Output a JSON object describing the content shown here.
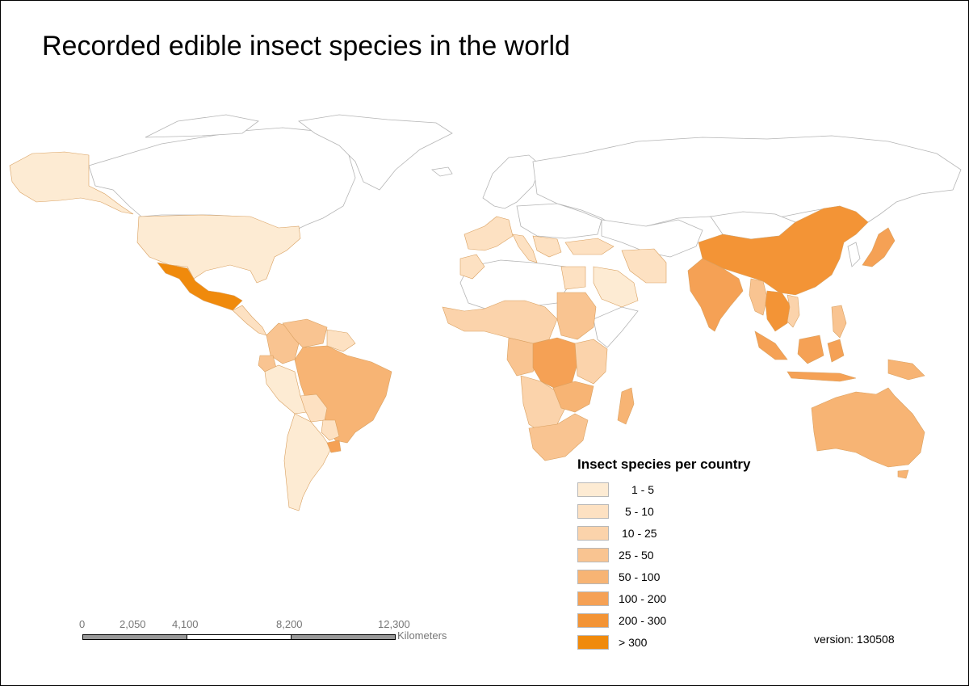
{
  "title": "Recorded edible insect species in the world",
  "legend": {
    "title": "Insect species per country",
    "classes": [
      {
        "label": "1 -  5",
        "color": "#fdebd3"
      },
      {
        "label": "5 - 10",
        "color": "#fde1c2"
      },
      {
        "label": "10 - 25",
        "color": "#fbd3ab"
      },
      {
        "label": "25 - 50",
        "color": "#f9c491"
      },
      {
        "label": "50 - 100",
        "color": "#f7b474"
      },
      {
        "label": "100 - 200",
        "color": "#f5a155"
      },
      {
        "label": "200 - 300",
        "color": "#f39436"
      },
      {
        "label": "> 300",
        "color": "#f08a0c"
      }
    ]
  },
  "scalebar": {
    "ticks": [
      "0",
      "2,050",
      "4,100",
      "8,200",
      "12,300"
    ],
    "unit": "Kilometers"
  },
  "version": "version: 130508",
  "regions": [
    {
      "name": "Alaska",
      "class": 0
    },
    {
      "name": "United States",
      "class": 0
    },
    {
      "name": "Mexico",
      "class": 7
    },
    {
      "name": "Central America",
      "class": 1
    },
    {
      "name": "Colombia",
      "class": 3
    },
    {
      "name": "Venezuela",
      "class": 3
    },
    {
      "name": "Guianas",
      "class": 1
    },
    {
      "name": "Ecuador",
      "class": 3
    },
    {
      "name": "Peru",
      "class": 0
    },
    {
      "name": "Brazil",
      "class": 4
    },
    {
      "name": "Bolivia",
      "class": 1
    },
    {
      "name": "Paraguay",
      "class": 1
    },
    {
      "name": "Argentina / Chile",
      "class": 0
    },
    {
      "name": "Uruguay",
      "class": 5
    },
    {
      "name": "Western Europe",
      "class": 1
    },
    {
      "name": "Italy",
      "class": 1
    },
    {
      "name": "Balkans",
      "class": 1
    },
    {
      "name": "Turkey",
      "class": 1
    },
    {
      "name": "Iran",
      "class": 1
    },
    {
      "name": "Saudi Arabia",
      "class": 0
    },
    {
      "name": "Morocco",
      "class": 1
    },
    {
      "name": "Egypt",
      "class": 1
    },
    {
      "name": "West Africa",
      "class": 2
    },
    {
      "name": "Sudan",
      "class": 3
    },
    {
      "name": "Central Africa",
      "class": 3
    },
    {
      "name": "DR Congo",
      "class": 5
    },
    {
      "name": "East Africa",
      "class": 2
    },
    {
      "name": "Southern Africa",
      "class": 2
    },
    {
      "name": "Zambia",
      "class": 4
    },
    {
      "name": "South Africa",
      "class": 3
    },
    {
      "name": "Madagascar",
      "class": 4
    },
    {
      "name": "China",
      "class": 6
    },
    {
      "name": "Japan",
      "class": 5
    },
    {
      "name": "India",
      "class": 5
    },
    {
      "name": "Myanmar",
      "class": 3
    },
    {
      "name": "Thailand / Laos",
      "class": 6
    },
    {
      "name": "Vietnam",
      "class": 2
    },
    {
      "name": "Philippines",
      "class": 3
    },
    {
      "name": "Indonesia",
      "class": 5
    },
    {
      "name": "Papua New Guinea",
      "class": 4
    },
    {
      "name": "Australia",
      "class": 4
    }
  ]
}
